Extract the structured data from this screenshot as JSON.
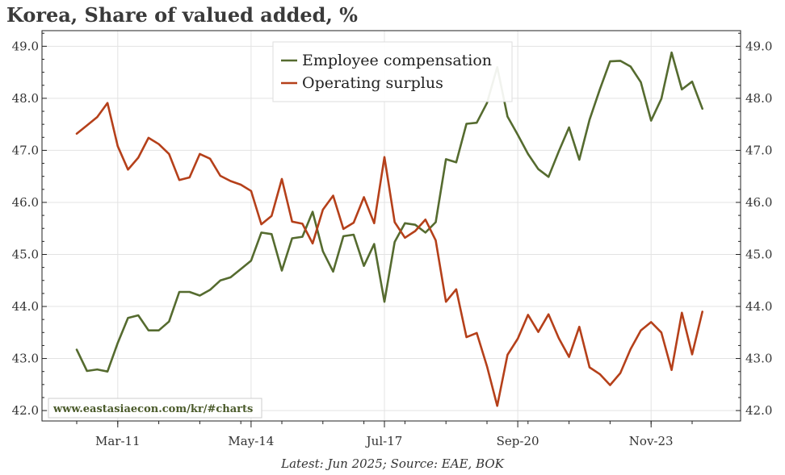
{
  "chart_data": {
    "type": "line",
    "title": "Korea, Share of valued added, %",
    "source": "Latest: Jun 2025; Source: EAE, BOK",
    "watermark": "www.eastasiaecon.com/kr/#charts",
    "ylim": [
      41.8,
      49.3
    ],
    "yticks": [
      "42.0",
      "43.0",
      "44.0",
      "45.0",
      "46.0",
      "47.0",
      "48.0",
      "49.0"
    ],
    "ytick_values": [
      42,
      43,
      44,
      45,
      46,
      47,
      48,
      49
    ],
    "xticks": [
      {
        "label": "Mar-11",
        "index": 4
      },
      {
        "label": "May-14",
        "index": 17
      },
      {
        "label": "Jul-17",
        "index": 30
      },
      {
        "label": "Sep-20",
        "index": 43
      },
      {
        "label": "Nov-23",
        "index": 56
      }
    ],
    "x_start": "Jun 2010",
    "x_frequency": "quarterly",
    "legend_position": "top-center",
    "grid": true,
    "series": [
      {
        "name": "Employee compensation",
        "color": "#556b2f",
        "values": [
          43.17,
          42.76,
          42.79,
          42.75,
          43.3,
          43.78,
          43.83,
          43.54,
          43.54,
          43.71,
          44.28,
          44.28,
          44.21,
          44.32,
          44.5,
          44.56,
          44.72,
          44.88,
          45.42,
          45.39,
          44.69,
          45.31,
          45.34,
          45.82,
          45.06,
          44.67,
          45.35,
          45.38,
          44.78,
          45.2,
          44.09,
          45.24,
          45.6,
          45.57,
          45.42,
          45.62,
          46.83,
          46.77,
          47.51,
          47.53,
          47.91,
          48.6,
          47.65,
          47.3,
          46.93,
          46.64,
          46.49,
          46.98,
          47.44,
          46.82,
          47.59,
          48.17,
          48.71,
          48.72,
          48.61,
          48.31,
          47.57,
          47.99,
          48.88,
          48.17,
          48.32,
          47.8
        ]
      },
      {
        "name": "Operating surplus",
        "color": "#b5401a",
        "values": [
          47.32,
          47.48,
          47.64,
          47.91,
          47.08,
          46.63,
          46.86,
          47.24,
          47.12,
          46.93,
          46.43,
          46.48,
          46.93,
          46.84,
          46.51,
          46.41,
          46.34,
          46.22,
          45.58,
          45.74,
          46.45,
          45.63,
          45.59,
          45.21,
          45.86,
          46.13,
          45.49,
          45.61,
          46.1,
          45.6,
          46.87,
          45.62,
          45.32,
          45.45,
          45.67,
          45.27,
          44.09,
          44.33,
          43.41,
          43.49,
          42.85,
          42.09,
          43.07,
          43.38,
          43.84,
          43.51,
          43.85,
          43.39,
          43.03,
          43.61,
          42.83,
          42.7,
          42.49,
          42.72,
          43.18,
          43.54,
          43.7,
          43.5,
          42.78,
          43.88,
          43.08,
          43.9
        ]
      }
    ]
  }
}
